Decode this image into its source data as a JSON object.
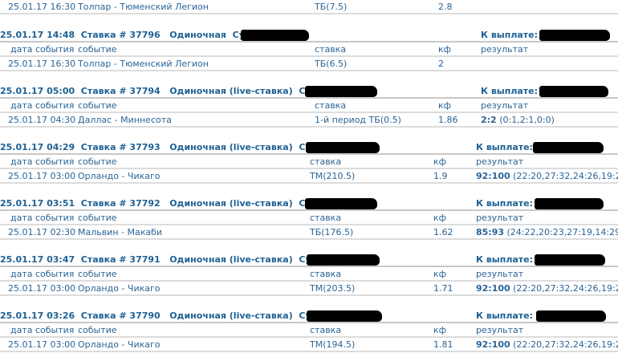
{
  "columns": {
    "date": "дата события",
    "event": "событие",
    "stake": "ставка",
    "kf": "кф",
    "result": "результат"
  },
  "labels": {
    "bet": "Ставка #",
    "sum": "Сумма:",
    "payout": "К выплате:"
  },
  "partial_row": {
    "date": "25.01.17 16:30",
    "event": "Толпар - Тюменский Легион",
    "stake": "ТБ(7.5)",
    "kf": "2.8",
    "score": "",
    "detail": ""
  },
  "bets": [
    {
      "time": "25.01.17 14:48",
      "id": "37796",
      "type": "Одиночная",
      "row": {
        "date": "25.01.17 16:30",
        "event": "Толпар - Тюменский Легион",
        "stake": "ТБ(6.5)",
        "kf": "2",
        "score": "",
        "detail": ""
      }
    },
    {
      "time": "25.01.17 05:00",
      "id": "37794",
      "type": "Одиночная (live-ставка)",
      "row": {
        "date": "25.01.17 04:30",
        "event": "Даллас - Миннесота",
        "stake": "1-й период ТБ(0.5)",
        "kf": "1.86",
        "score": "2:2",
        "detail": " (0:1,2:1,0:0)"
      }
    },
    {
      "time": "25.01.17 04:29",
      "id": "37793",
      "type": "Одиночная (live-ставка)",
      "row": {
        "date": "25.01.17 03:00",
        "event": "Орландо - Чикаго",
        "stake": "ТМ(210.5)",
        "kf": "1.9",
        "score": "92:100",
        "detail": " (22:20,27:32,24:26,19:22)"
      }
    },
    {
      "time": "25.01.17 03:51",
      "id": "37792",
      "type": "Одиночная (live-ставка)",
      "row": {
        "date": "25.01.17 02:30",
        "event": "Мальвин - Макаби",
        "stake": "ТБ(176.5)",
        "kf": "1.62",
        "score": "85:93",
        "detail": " (24:22,20:23,27:19,14:29)"
      }
    },
    {
      "time": "25.01.17 03:47",
      "id": "37791",
      "type": "Одиночная (live-ставка)",
      "row": {
        "date": "25.01.17 03:00",
        "event": "Орландо - Чикаго",
        "stake": "ТМ(203.5)",
        "kf": "1.71",
        "score": "92:100",
        "detail": " (22:20,27:32,24:26,19:22)"
      }
    },
    {
      "time": "25.01.17 03:26",
      "id": "37790",
      "type": "Одиночная (live-ставка)",
      "row": {
        "date": "25.01.17 03:00",
        "event": "Орландо - Чикаго",
        "stake": "ТМ(194.5)",
        "kf": "1.81",
        "score": "92:100",
        "detail": " (22:20,27:32,24:26,19:22)"
      }
    }
  ]
}
